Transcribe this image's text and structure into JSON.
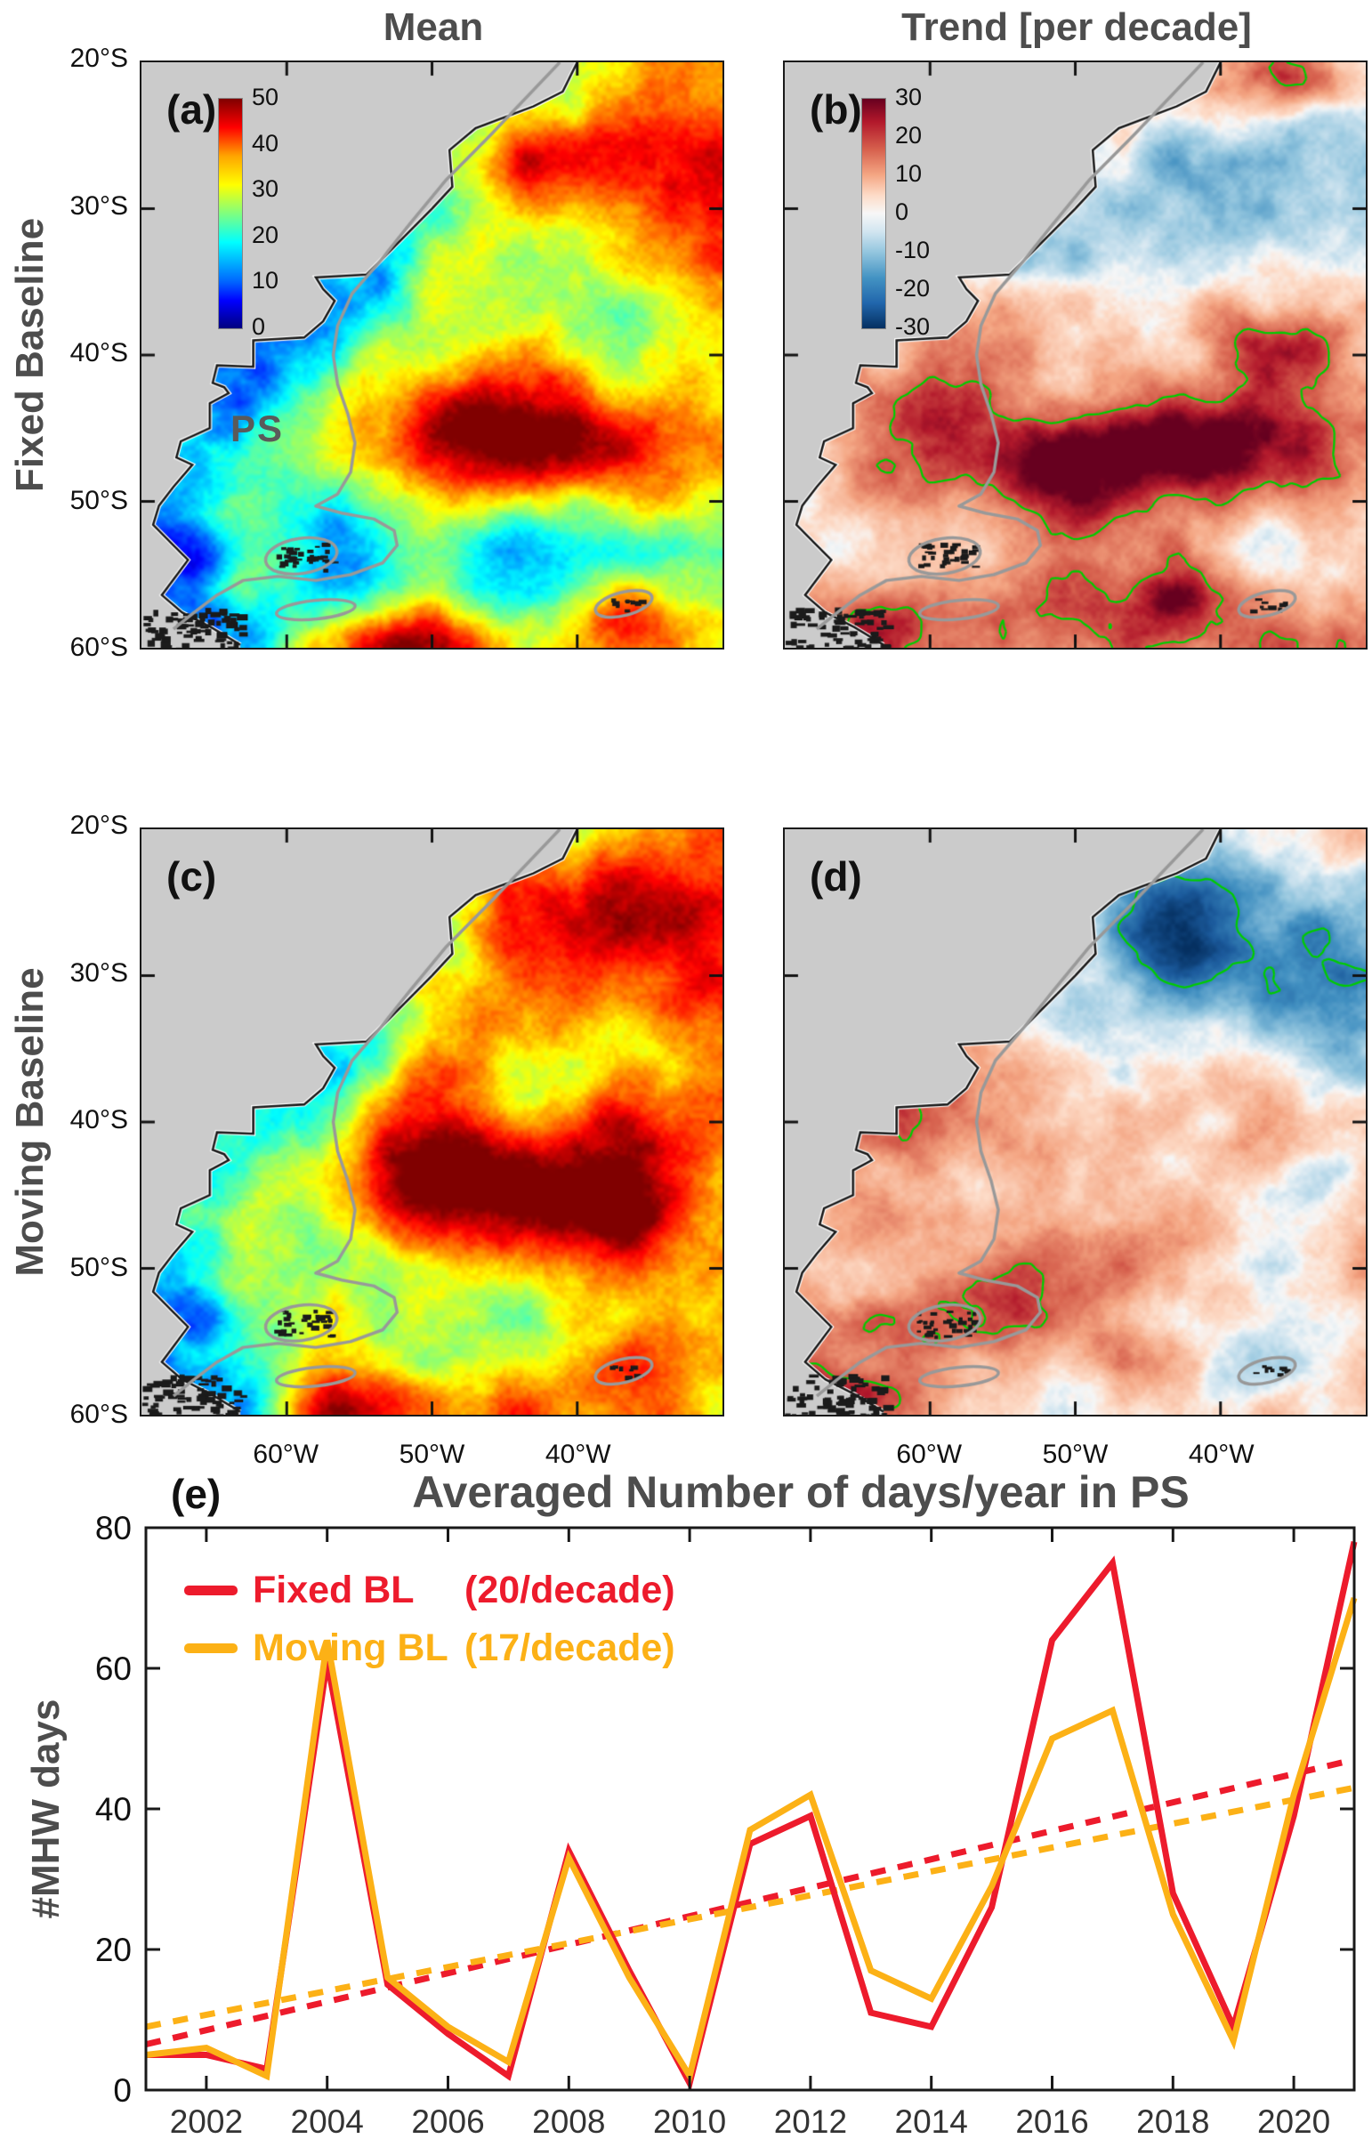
{
  "figure": {
    "column_titles": [
      "Mean",
      "Trend [per decade]"
    ],
    "row_labels": [
      "Fixed Baseline",
      "Moving Baseline"
    ],
    "panel_letters": [
      "(a)",
      "(b)",
      "(c)",
      "(d)",
      "(e)"
    ],
    "map_region_label": "PS",
    "lat_tick_labels": [
      "20°S",
      "30°S",
      "40°S",
      "50°S",
      "60°S"
    ],
    "lon_tick_labels": [
      "60°W",
      "50°W",
      "40°W"
    ],
    "mean_colorbar": {
      "ticks": [
        "50",
        "40",
        "30",
        "20",
        "10",
        "0"
      ]
    },
    "trend_colorbar": {
      "ticks": [
        "30",
        "20",
        "10",
        "0",
        "-10",
        "-20",
        "-30"
      ]
    }
  },
  "chart_data": {
    "type": "line",
    "title": "Averaged Number of days/year in PS",
    "ylabel": "#MHW days",
    "xlim": [
      2001,
      2021
    ],
    "ylim": [
      0,
      80
    ],
    "yticks": [
      0,
      20,
      40,
      60,
      80
    ],
    "xticks": [
      2002,
      2004,
      2006,
      2008,
      2010,
      2012,
      2014,
      2016,
      2018,
      2020
    ],
    "years": [
      2001,
      2002,
      2003,
      2004,
      2005,
      2006,
      2007,
      2008,
      2009,
      2010,
      2011,
      2012,
      2013,
      2014,
      2015,
      2016,
      2017,
      2018,
      2019,
      2020,
      2021
    ],
    "series": [
      {
        "name": "Fixed BL",
        "trend_label": "(20/decade)",
        "color": "#ed1b2c",
        "per_decade": 20,
        "values": [
          5,
          5,
          3,
          61,
          15,
          8,
          2,
          34,
          17,
          1,
          35,
          39,
          11,
          9,
          26,
          64,
          75,
          28,
          9,
          39,
          78
        ],
        "trend_line": {
          "x": [
            2001,
            2021
          ],
          "y": [
            6.5,
            47
          ]
        }
      },
      {
        "name": "Moving BL",
        "trend_label": "(17/decade)",
        "color": "#fcb116",
        "per_decade": 17,
        "values": [
          5,
          6,
          2,
          64,
          16,
          9,
          4,
          33,
          16,
          2,
          37,
          42,
          17,
          13,
          29,
          50,
          54,
          25,
          7,
          42,
          70
        ],
        "trend_line": {
          "x": [
            2001,
            2021
          ],
          "y": [
            9,
            43
          ]
        }
      }
    ],
    "legend_position": "top-left",
    "grid": false
  },
  "colors": {
    "fixed_red": "#ed1b2c",
    "moving_orange": "#fcb116",
    "title_gray": "#4d4d4d",
    "land_gray": "#cbcbcb",
    "shelf_contour_gray": "#999999",
    "significance_green": "#00cc00",
    "axis_black": "#191919"
  }
}
